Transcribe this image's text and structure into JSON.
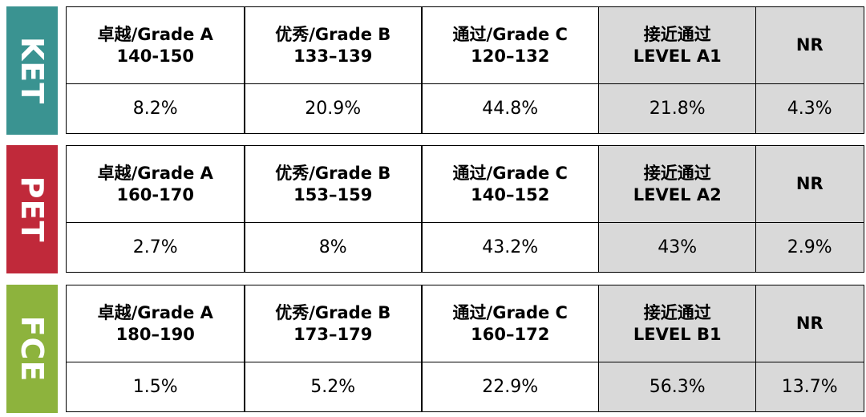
{
  "sections": [
    {
      "label": "KET",
      "color": "#3a9391",
      "headers": [
        [
          "卓越/Grade A",
          "140-150"
        ],
        [
          "优秀/Grade B",
          "133–139"
        ],
        [
          "通过/Grade C",
          "120–132"
        ],
        [
          "接近通过",
          "LEVEL A1"
        ],
        [
          "NR"
        ]
      ],
      "values": [
        "8.2%",
        "20.9%",
        "44.8%",
        "21.8%",
        "4.3%"
      ]
    },
    {
      "label": "PET",
      "color": "#c0293a",
      "headers": [
        [
          "卓越/Grade A",
          "160-170"
        ],
        [
          "优秀/Grade B",
          "153–159"
        ],
        [
          "通过/Grade C",
          "140–152"
        ],
        [
          "接近通过",
          "LEVEL A2"
        ],
        [
          "NR"
        ]
      ],
      "values": [
        "2.7%",
        "8%",
        "43.2%",
        "43%",
        "2.9%"
      ]
    },
    {
      "label": "FCE",
      "color": "#8db33d",
      "headers": [
        [
          "卓越/Grade A",
          "180–190"
        ],
        [
          "优秀/Grade B",
          "173–179"
        ],
        [
          "通过/Grade C",
          "160–172"
        ],
        [
          "接近通过",
          "LEVEL B1"
        ],
        [
          "NR"
        ]
      ],
      "values": [
        "1.5%",
        "5.2%",
        "22.9%",
        "56.3%",
        "13.7%"
      ]
    }
  ]
}
